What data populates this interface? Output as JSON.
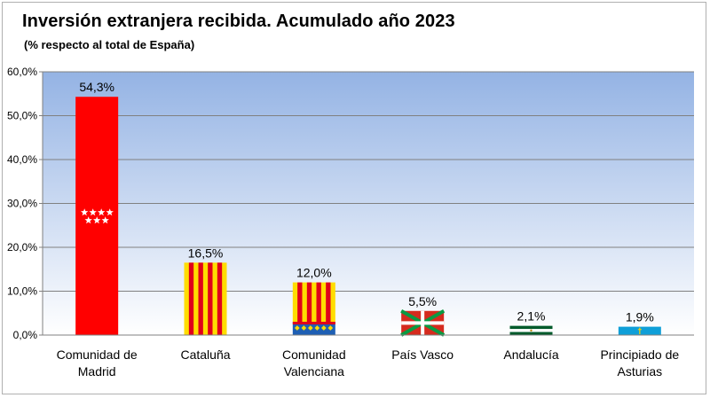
{
  "title": "Inversión extranjera recibida. Acumulado año 2023",
  "subtitle": "(% respecto al total de España)",
  "chart_data": {
    "type": "bar",
    "categories": [
      [
        "Comunidad de",
        "Madrid"
      ],
      [
        "Cataluña"
      ],
      [
        "Comunidad",
        "Valenciana"
      ],
      [
        "País Vasco"
      ],
      [
        "Andalucía"
      ],
      [
        "Principiado de",
        "Asturias"
      ]
    ],
    "values": [
      54.3,
      16.5,
      12.0,
      5.5,
      2.1,
      1.9
    ],
    "data_labels": [
      "54,3%",
      "16,5%",
      "12,0%",
      "5,5%",
      "2,1%",
      "1,9%"
    ],
    "flags": [
      "madrid",
      "cataluna",
      "valenciana",
      "pais-vasco",
      "andalucia",
      "asturias"
    ],
    "ylim": [
      0,
      60
    ],
    "y_ticks": [
      0,
      10,
      20,
      30,
      40,
      50,
      60
    ],
    "y_tick_labels": [
      "0,0%",
      "10,0%",
      "20,0%",
      "30,0%",
      "40,0%",
      "50,0%",
      "60,0%"
    ],
    "grid": true,
    "colors": {
      "plot_top": "#94b3e4",
      "plot_bottom": "#ffffff",
      "madrid_red": "#ff0000",
      "catalan_yellow": "#ffdd00",
      "catalan_red": "#e0001b",
      "valencia_blue": "#1e5fb4",
      "basque_red": "#d52b1e",
      "basque_green": "#0a9a43",
      "andalucia_green": "#005a2b",
      "asturias_blue": "#0f9fd8",
      "asturias_gold": "#ffd200"
    }
  }
}
